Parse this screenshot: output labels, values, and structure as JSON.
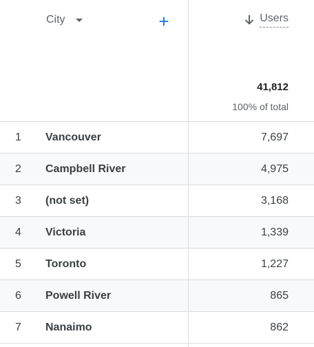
{
  "header": {
    "dimension_label": "City",
    "add_label": "+",
    "metric_label": "Users",
    "total_value": "41,812",
    "total_pct": "100% of total"
  },
  "rows": [
    {
      "index": "1",
      "city": "Vancouver",
      "users": "7,697"
    },
    {
      "index": "2",
      "city": "Campbell River",
      "users": "4,975"
    },
    {
      "index": "3",
      "city": "(not set)",
      "users": "3,168"
    },
    {
      "index": "4",
      "city": "Victoria",
      "users": "1,339"
    },
    {
      "index": "5",
      "city": "Toronto",
      "users": "1,227"
    },
    {
      "index": "6",
      "city": "Powell River",
      "users": "865"
    },
    {
      "index": "7",
      "city": "Nanaimo",
      "users": "862"
    }
  ],
  "colors": {
    "accent": "#1a73e8",
    "row_shade": "#f8f9fa",
    "divider": "#dadce0"
  },
  "icons": {
    "sort": "arrow-down-icon",
    "dropdown": "chevron-down-icon",
    "add": "plus-icon"
  }
}
